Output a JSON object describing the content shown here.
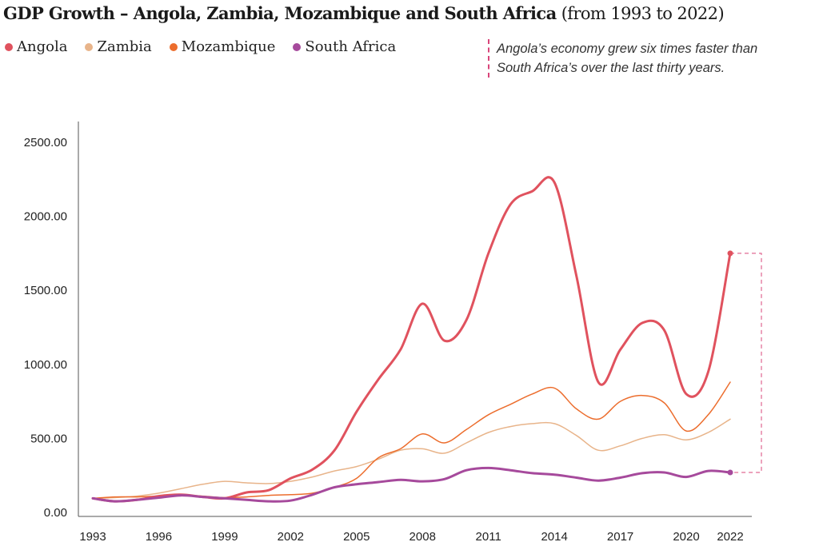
{
  "title": {
    "main": "GDP Growth – Angola, Zambia, Mozambique and South Africa",
    "sub": "(from 1993 to 2022)"
  },
  "annotation": {
    "line1": "Angola’s economy grew six times faster than",
    "line2": "South Africa’s over the last thirty years."
  },
  "legend": [
    {
      "name": "Angola",
      "color": "#e0525e"
    },
    {
      "name": "Zambia",
      "color": "#e8b48a"
    },
    {
      "name": "Mozambique",
      "color": "#ec6d2d"
    },
    {
      "name": "South Africa",
      "color": "#a64a9c"
    }
  ],
  "chart_data": {
    "type": "line",
    "x": [
      1993,
      1994,
      1995,
      1996,
      1997,
      1998,
      1999,
      2000,
      2001,
      2002,
      2003,
      2004,
      2005,
      2006,
      2007,
      2008,
      2009,
      2010,
      2011,
      2012,
      2013,
      2014,
      2015,
      2016,
      2017,
      2018,
      2019,
      2020,
      2021,
      2022
    ],
    "x_ticks": [
      "1993",
      "1996",
      "1999",
      "2002",
      "2005",
      "2008",
      "2011",
      "2014",
      "2017",
      "2020",
      "2022"
    ],
    "y_ticks": [
      "0.00",
      "500.00",
      "1000.00",
      "1500.00",
      "2000.00",
      "2500.00"
    ],
    "ylim": [
      0,
      2500
    ],
    "xlim": [
      1993,
      2022
    ],
    "grid": false,
    "legend_position": "top-left",
    "series": [
      {
        "name": "Angola",
        "color": "#e0525e",
        "width": 3,
        "values": [
          95,
          75,
          85,
          110,
          120,
          105,
          95,
          135,
          150,
          230,
          290,
          420,
          680,
          900,
          1100,
          1410,
          1160,
          1300,
          1750,
          2080,
          2170,
          2230,
          1600,
          880,
          1100,
          1280,
          1230,
          800,
          950,
          1750
        ]
      },
      {
        "name": "Zambia",
        "color": "#e8b48a",
        "width": 1.5,
        "values": [
          95,
          100,
          110,
          130,
          160,
          190,
          210,
          200,
          195,
          210,
          240,
          280,
          310,
          360,
          420,
          430,
          400,
          470,
          540,
          580,
          600,
          600,
          520,
          420,
          450,
          500,
          525,
          490,
          540,
          630
        ]
      },
      {
        "name": "Mozambique",
        "color": "#ec6d2d",
        "width": 1.5,
        "values": [
          95,
          105,
          105,
          110,
          115,
          110,
          100,
          105,
          115,
          120,
          130,
          170,
          230,
          370,
          430,
          530,
          470,
          560,
          660,
          730,
          800,
          840,
          700,
          630,
          750,
          790,
          740,
          550,
          660,
          880
        ]
      },
      {
        "name": "South Africa",
        "color": "#a64a9c",
        "width": 3,
        "values": [
          95,
          75,
          85,
          100,
          115,
          105,
          95,
          85,
          75,
          80,
          120,
          170,
          190,
          205,
          220,
          210,
          225,
          285,
          300,
          285,
          265,
          255,
          235,
          215,
          235,
          265,
          270,
          240,
          280,
          270
        ]
      }
    ]
  }
}
